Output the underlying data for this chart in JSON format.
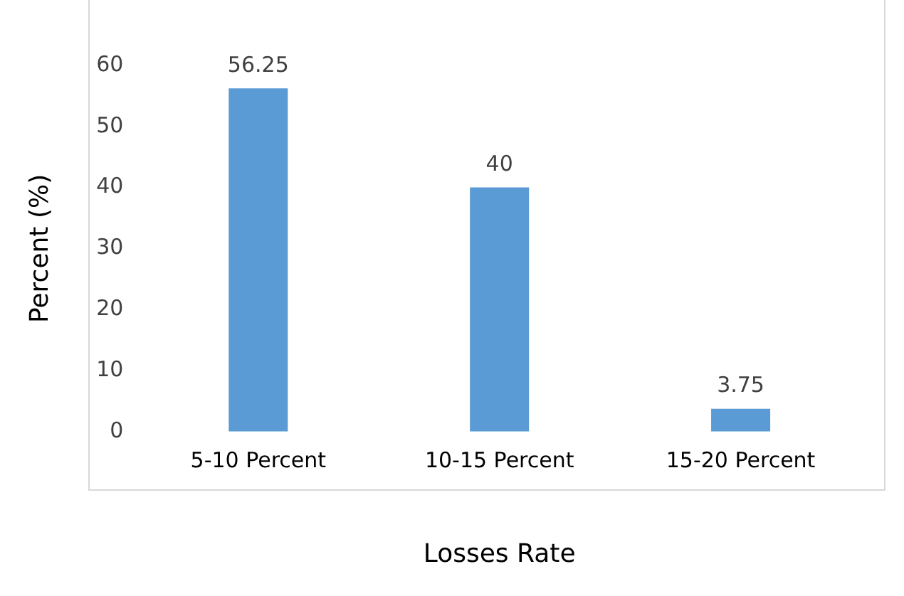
{
  "chart_data": {
    "type": "bar",
    "xlabel": "Losses Rate",
    "ylabel": "Percent (%)",
    "categories": [
      "5-10 Percent",
      "10-15 Percent",
      "15-20 Percent"
    ],
    "values": [
      56.25,
      40,
      3.75
    ],
    "color": "#5b9bd5",
    "ylim": [
      0,
      60
    ],
    "yticks": [
      0,
      10,
      20,
      30,
      40,
      50,
      60
    ],
    "grid": false,
    "legend": false,
    "data_labels": true
  }
}
